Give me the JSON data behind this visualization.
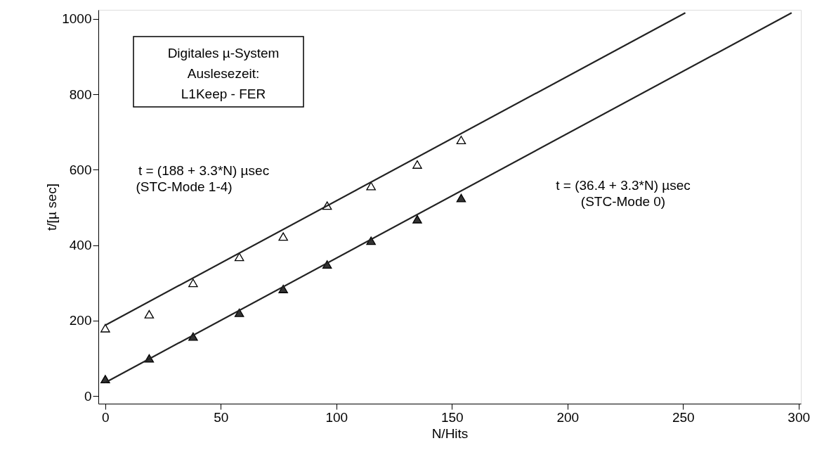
{
  "chart_data": {
    "type": "scatter",
    "xlabel": "N/Hits",
    "ylabel": "t/[µ sec]",
    "xlim": [
      -3,
      301
    ],
    "ylim": [
      -20,
      1024
    ],
    "xticks": [
      0,
      50,
      100,
      150,
      200,
      250,
      300
    ],
    "yticks": [
      0,
      200,
      400,
      600,
      800,
      1000
    ],
    "grid": false,
    "x": [
      0,
      19,
      38,
      58,
      77,
      96,
      115,
      135,
      154
    ],
    "series": [
      {
        "color": "#ffffff",
        "marker": "triangle",
        "values": [
          180,
          217,
          300,
          369,
          423,
          505,
          557,
          614,
          679
        ]
      },
      {
        "color": "#333333",
        "marker": "triangle",
        "values": [
          45,
          100,
          158,
          221,
          284,
          349,
          412,
          469,
          525
        ]
      },
      {
        "type": "line",
        "color": "#222222",
        "x": [
          0,
          251
        ],
        "values": [
          188,
          1016
        ],
        "line_style": "solid"
      },
      {
        "type": "line",
        "color": "#222222",
        "x": [
          0,
          297
        ],
        "values": [
          36,
          1016
        ],
        "line_style": "solid"
      }
    ],
    "annotations": [
      "Digitales µ-System",
      "Auslesezeit:",
      "L1Keep - FER",
      "t = (188 + 3.3*N) µsec",
      "(STC-Mode 1-4)",
      "t = (36.4 + 3.3*N) µsec",
      "(STC-Mode 0)"
    ]
  }
}
